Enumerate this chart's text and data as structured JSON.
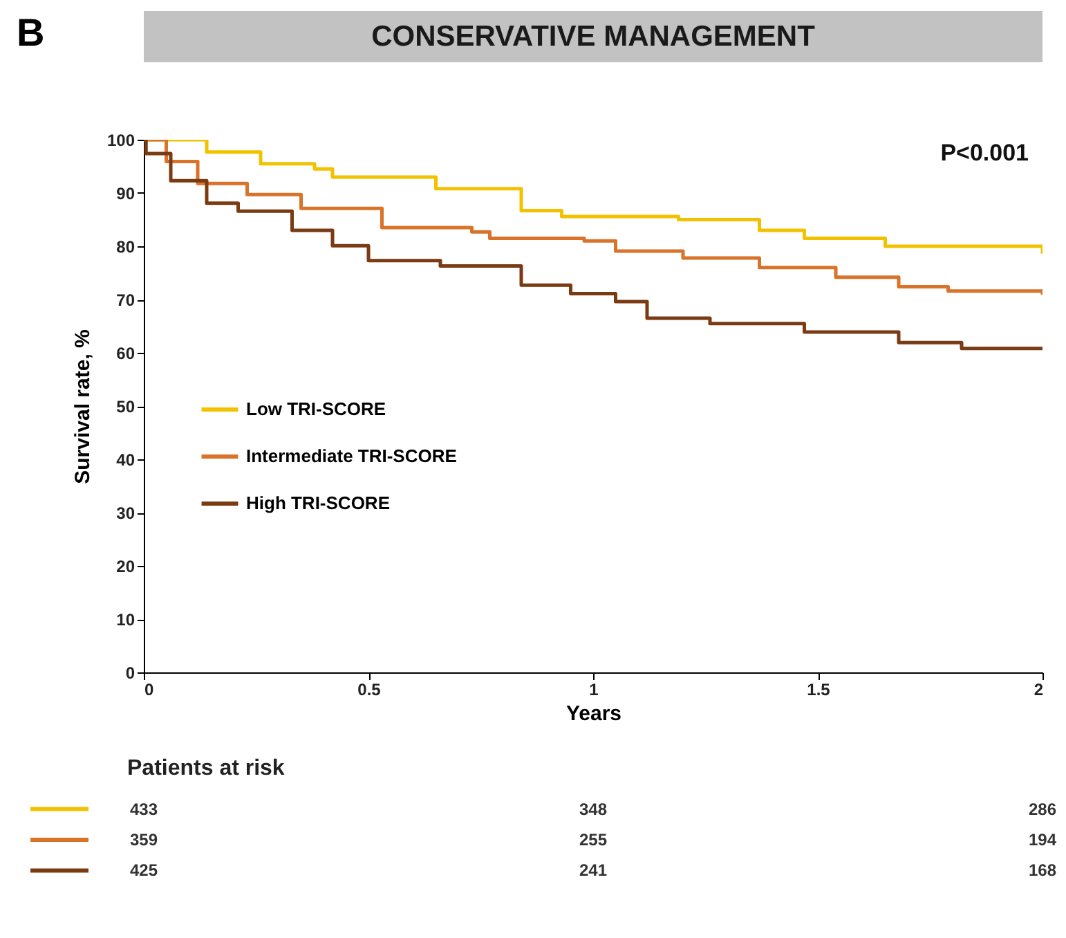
{
  "chart_data": {
    "type": "step",
    "title": "CONSERVATIVE MANAGEMENT",
    "xlabel": "Years",
    "ylabel": "Survival rate, %",
    "annotations": [
      "B",
      "P<0.001",
      "Patients at risk",
      "433",
      "348",
      "286",
      "359",
      "255",
      "194",
      "425",
      "241",
      "168"
    ],
    "series": [
      {
        "name": "Low TRI-SCORE",
        "color": "#f2c200",
        "x": [
          0,
          0.14,
          0.26,
          0.38,
          0.42,
          0.65,
          0.84,
          0.93,
          1.19,
          1.37,
          1.47,
          1.65,
          2
        ],
        "values": [
          100,
          97.7,
          95.5,
          94.5,
          93,
          90.8,
          86.7,
          85.6,
          85,
          83,
          81.5,
          80,
          78.6
        ]
      },
      {
        "name": "Intermediate TRI-SCORE",
        "color": "#d9732a",
        "x": [
          0,
          0.05,
          0.12,
          0.23,
          0.35,
          0.53,
          0.73,
          0.77,
          0.98,
          1.05,
          1.2,
          1.37,
          1.54,
          1.68,
          1.79,
          2
        ],
        "values": [
          100,
          95.9,
          91.8,
          89.7,
          87.1,
          83.5,
          82.7,
          81.5,
          81,
          79.1,
          77.8,
          76,
          74.2,
          72.4,
          71.6,
          70.9
        ]
      },
      {
        "name": "High TRI-SCORE",
        "color": "#7a3a12",
        "x": [
          0,
          0.005,
          0.06,
          0.14,
          0.21,
          0.33,
          0.42,
          0.5,
          0.66,
          0.84,
          0.95,
          1.05,
          1.12,
          1.26,
          1.47,
          1.68,
          1.82,
          2
        ],
        "values": [
          100,
          97.4,
          92.3,
          88.1,
          86.6,
          83,
          80.1,
          77.3,
          76.3,
          72.7,
          71.1,
          69.6,
          66.5,
          65.5,
          63.9,
          61.9,
          60.8,
          60.5
        ]
      }
    ],
    "xlim": [
      0,
      2
    ],
    "xticks": [
      0,
      0.5,
      1,
      1.5,
      2
    ],
    "ylim": [
      0,
      100
    ],
    "yticks": [
      0,
      10,
      20,
      30,
      40,
      50,
      60,
      70,
      80,
      90,
      100
    ],
    "grid": false,
    "legend": "bottom left"
  }
}
